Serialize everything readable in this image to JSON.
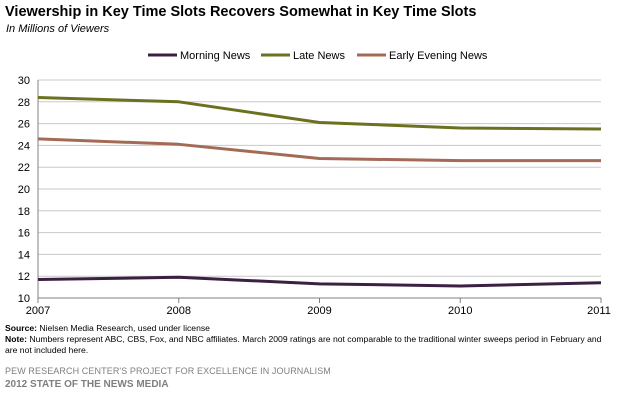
{
  "title": "Viewership in Key Time Slots Recovers  Somewhat in Key Time Slots",
  "subtitle": "In Millions of Viewers",
  "colors": {
    "morning": "#3b2041",
    "late": "#6b7120",
    "early": "#a36b55",
    "axis": "#808080",
    "grid": "#c8c8c8"
  },
  "chart_data": {
    "type": "line",
    "x": [
      "2007",
      "2008",
      "2009",
      "2010",
      "2011"
    ],
    "ylim": [
      10,
      30
    ],
    "yticks": [
      "10",
      "12",
      "14",
      "16",
      "18",
      "20",
      "22",
      "24",
      "26",
      "28",
      "30"
    ],
    "grid": true,
    "legend_position": "top",
    "series": [
      {
        "name": "Morning News",
        "color": "#3b2041",
        "values": [
          11.7,
          11.9,
          11.3,
          11.1,
          11.4
        ]
      },
      {
        "name": "Late News",
        "color": "#6b7120",
        "values": [
          28.4,
          28.0,
          26.1,
          25.6,
          25.5
        ]
      },
      {
        "name": "Early Evening News",
        "color": "#a36b55",
        "values": [
          24.6,
          24.1,
          22.8,
          22.6,
          22.6
        ]
      }
    ]
  },
  "source_label": "Source:",
  "source_text": " Nielsen Media Research, used under license",
  "note_label": "Note:",
  "note_text": " Numbers represent ABC, CBS, Fox, and NBC affiliates. March 2009 ratings are not comparable  to the traditional winter sweeps period in February and are not included here.",
  "org": "PEW RESEARCH CENTER'S PROJECT FOR EXCELLENCE IN JOURNALISM",
  "report": "2012 STATE OF THE NEWS MEDIA"
}
